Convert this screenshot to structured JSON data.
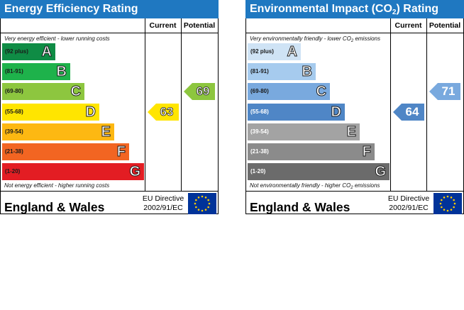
{
  "energy": {
    "title": "Energy Efficiency Rating",
    "col_current": "Current",
    "col_potential": "Potential",
    "top_note": "Very energy efficient - lower running costs",
    "bottom_note": "Not energy efficient - higher running costs",
    "bands": [
      {
        "range": "(92 plus)",
        "letter": "A",
        "color": "#0f8c45",
        "length": 0.25
      },
      {
        "range": "(81-91)",
        "letter": "B",
        "color": "#1eb24b",
        "length": 0.32
      },
      {
        "range": "(69-80)",
        "letter": "C",
        "color": "#8dc63f",
        "length": 0.39
      },
      {
        "range": "(55-68)",
        "letter": "D",
        "color": "#ffe500",
        "length": 0.46
      },
      {
        "range": "(39-54)",
        "letter": "E",
        "color": "#fdb812",
        "length": 0.53
      },
      {
        "range": "(21-38)",
        "letter": "F",
        "color": "#f26522",
        "length": 0.6
      },
      {
        "range": "(1-20)",
        "letter": "G",
        "color": "#e31d23",
        "length": 0.67
      }
    ],
    "current": {
      "value": "63",
      "band": 3,
      "color": "#ffe500"
    },
    "potential": {
      "value": "69",
      "band": 2,
      "color": "#8dc63f"
    },
    "region": "England & Wales",
    "directive_line1": "EU Directive",
    "directive_line2": "2002/91/EC"
  },
  "environmental": {
    "title_prefix": "Environmental Impact (CO",
    "title_sub": "2",
    "title_suffix": ") Rating",
    "col_current": "Current",
    "col_potential": "Potential",
    "top_note_prefix": "Very environmentally friendly - lower CO",
    "top_note_sub": "2",
    "top_note_suffix": " emissions",
    "bottom_note_prefix": "Not environmentally friendly - higher CO",
    "bottom_note_sub": "2",
    "bottom_note_suffix": " emissions",
    "bands": [
      {
        "range": "(92 plus)",
        "letter": "A",
        "color": "#cfe3f5",
        "length": 0.25
      },
      {
        "range": "(81-91)",
        "letter": "B",
        "color": "#a6cbee",
        "length": 0.32
      },
      {
        "range": "(69-80)",
        "letter": "C",
        "color": "#79a9de",
        "length": 0.39
      },
      {
        "range": "(55-68)",
        "letter": "D",
        "color": "#4f86c6",
        "length": 0.46
      },
      {
        "range": "(39-54)",
        "letter": "E",
        "color": "#a3a3a3",
        "length": 0.53
      },
      {
        "range": "(21-38)",
        "letter": "F",
        "color": "#8b8b8b",
        "length": 0.6
      },
      {
        "range": "(1-20)",
        "letter": "G",
        "color": "#6b6b6b",
        "length": 0.67
      }
    ],
    "current": {
      "value": "64",
      "band": 3,
      "color": "#4f86c6"
    },
    "potential": {
      "value": "71",
      "band": 2,
      "color": "#79a9de"
    },
    "region": "England & Wales",
    "directive_line1": "EU Directive",
    "directive_line2": "2002/91/EC"
  },
  "colors": {
    "header_blue": "#1f78c1",
    "eu_blue": "#003399",
    "eu_star": "#ffcc00"
  },
  "icons": {
    "flag": "eu-flag-icon"
  }
}
